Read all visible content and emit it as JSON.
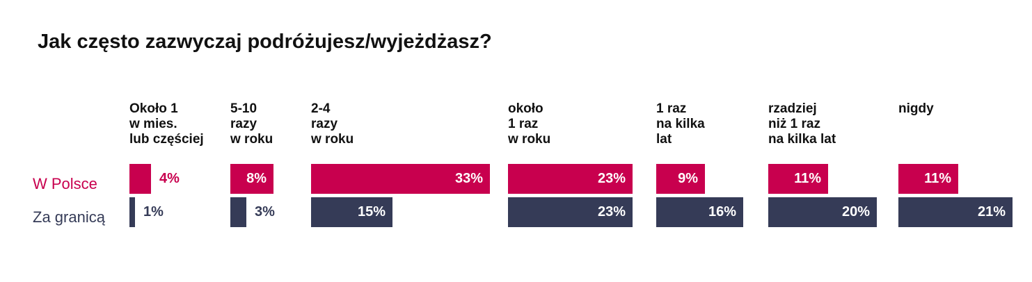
{
  "chart_data": {
    "type": "bar",
    "title": "Jak często zazwyczaj podróżujesz/wyjeżdżasz?",
    "categories": [
      [
        "Około 1",
        "w mies.",
        "lub częściej"
      ],
      [
        "5-10",
        "razy",
        "w roku"
      ],
      [
        "2-4",
        "razy",
        "w roku"
      ],
      [
        "około",
        "1 raz",
        "w roku"
      ],
      [
        "1 raz",
        "na kilka",
        "lat"
      ],
      [
        "rzadziej",
        "niż 1 raz",
        "na kilka lat"
      ],
      [
        "nigdy"
      ]
    ],
    "series": [
      {
        "name": "W Polsce",
        "color": "#c8004e",
        "values": [
          4,
          8,
          33,
          23,
          9,
          11,
          11
        ]
      },
      {
        "name": "Za granicą",
        "color": "#353b57",
        "values": [
          1,
          3,
          15,
          23,
          16,
          20,
          21
        ]
      }
    ],
    "value_format": "percent"
  }
}
